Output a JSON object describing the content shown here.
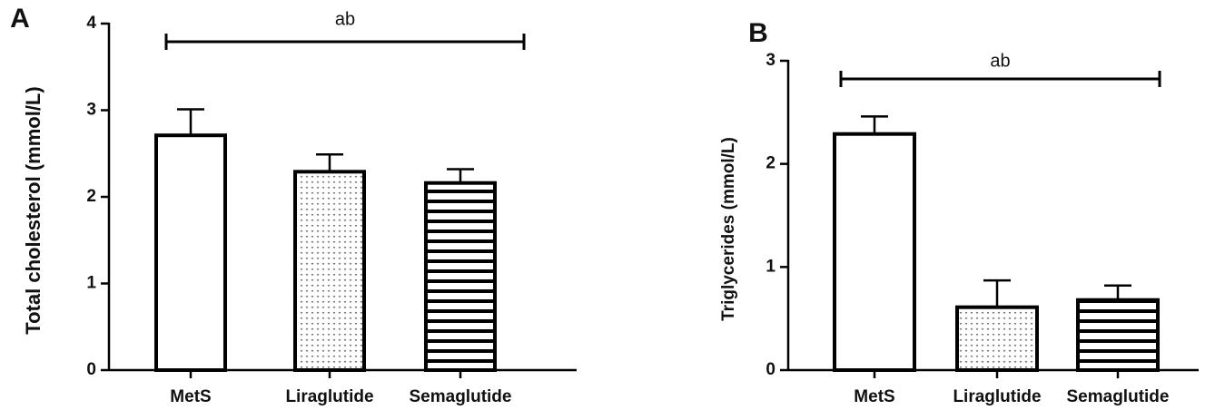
{
  "chart_data": [
    {
      "type": "bar",
      "panel_label": "A",
      "y_label": "Total cholesterol (mmol/L)",
      "categories": [
        "MetS",
        "Liraglutide",
        "Semaglutide"
      ],
      "values": [
        2.71,
        2.29,
        2.16
      ],
      "errors": [
        0.3,
        0.2,
        0.16
      ],
      "patterns": [
        "none",
        "dots",
        "stripes"
      ],
      "color": "#000000",
      "ylim": [
        0,
        4
      ],
      "yticks": [
        0,
        1,
        2,
        3,
        4
      ],
      "annotation": "ab"
    },
    {
      "type": "bar",
      "panel_label": "B",
      "y_label": "Triglycerides (mmol/L)",
      "categories": [
        "MetS",
        "Liraglutide",
        "Semaglutide"
      ],
      "values": [
        2.29,
        0.61,
        0.68
      ],
      "errors": [
        0.17,
        0.26,
        0.14
      ],
      "patterns": [
        "none",
        "dots",
        "stripes"
      ],
      "color": "#000000",
      "ylim": [
        0,
        3
      ],
      "yticks": [
        0,
        1,
        2,
        3
      ],
      "annotation": "ab"
    }
  ]
}
